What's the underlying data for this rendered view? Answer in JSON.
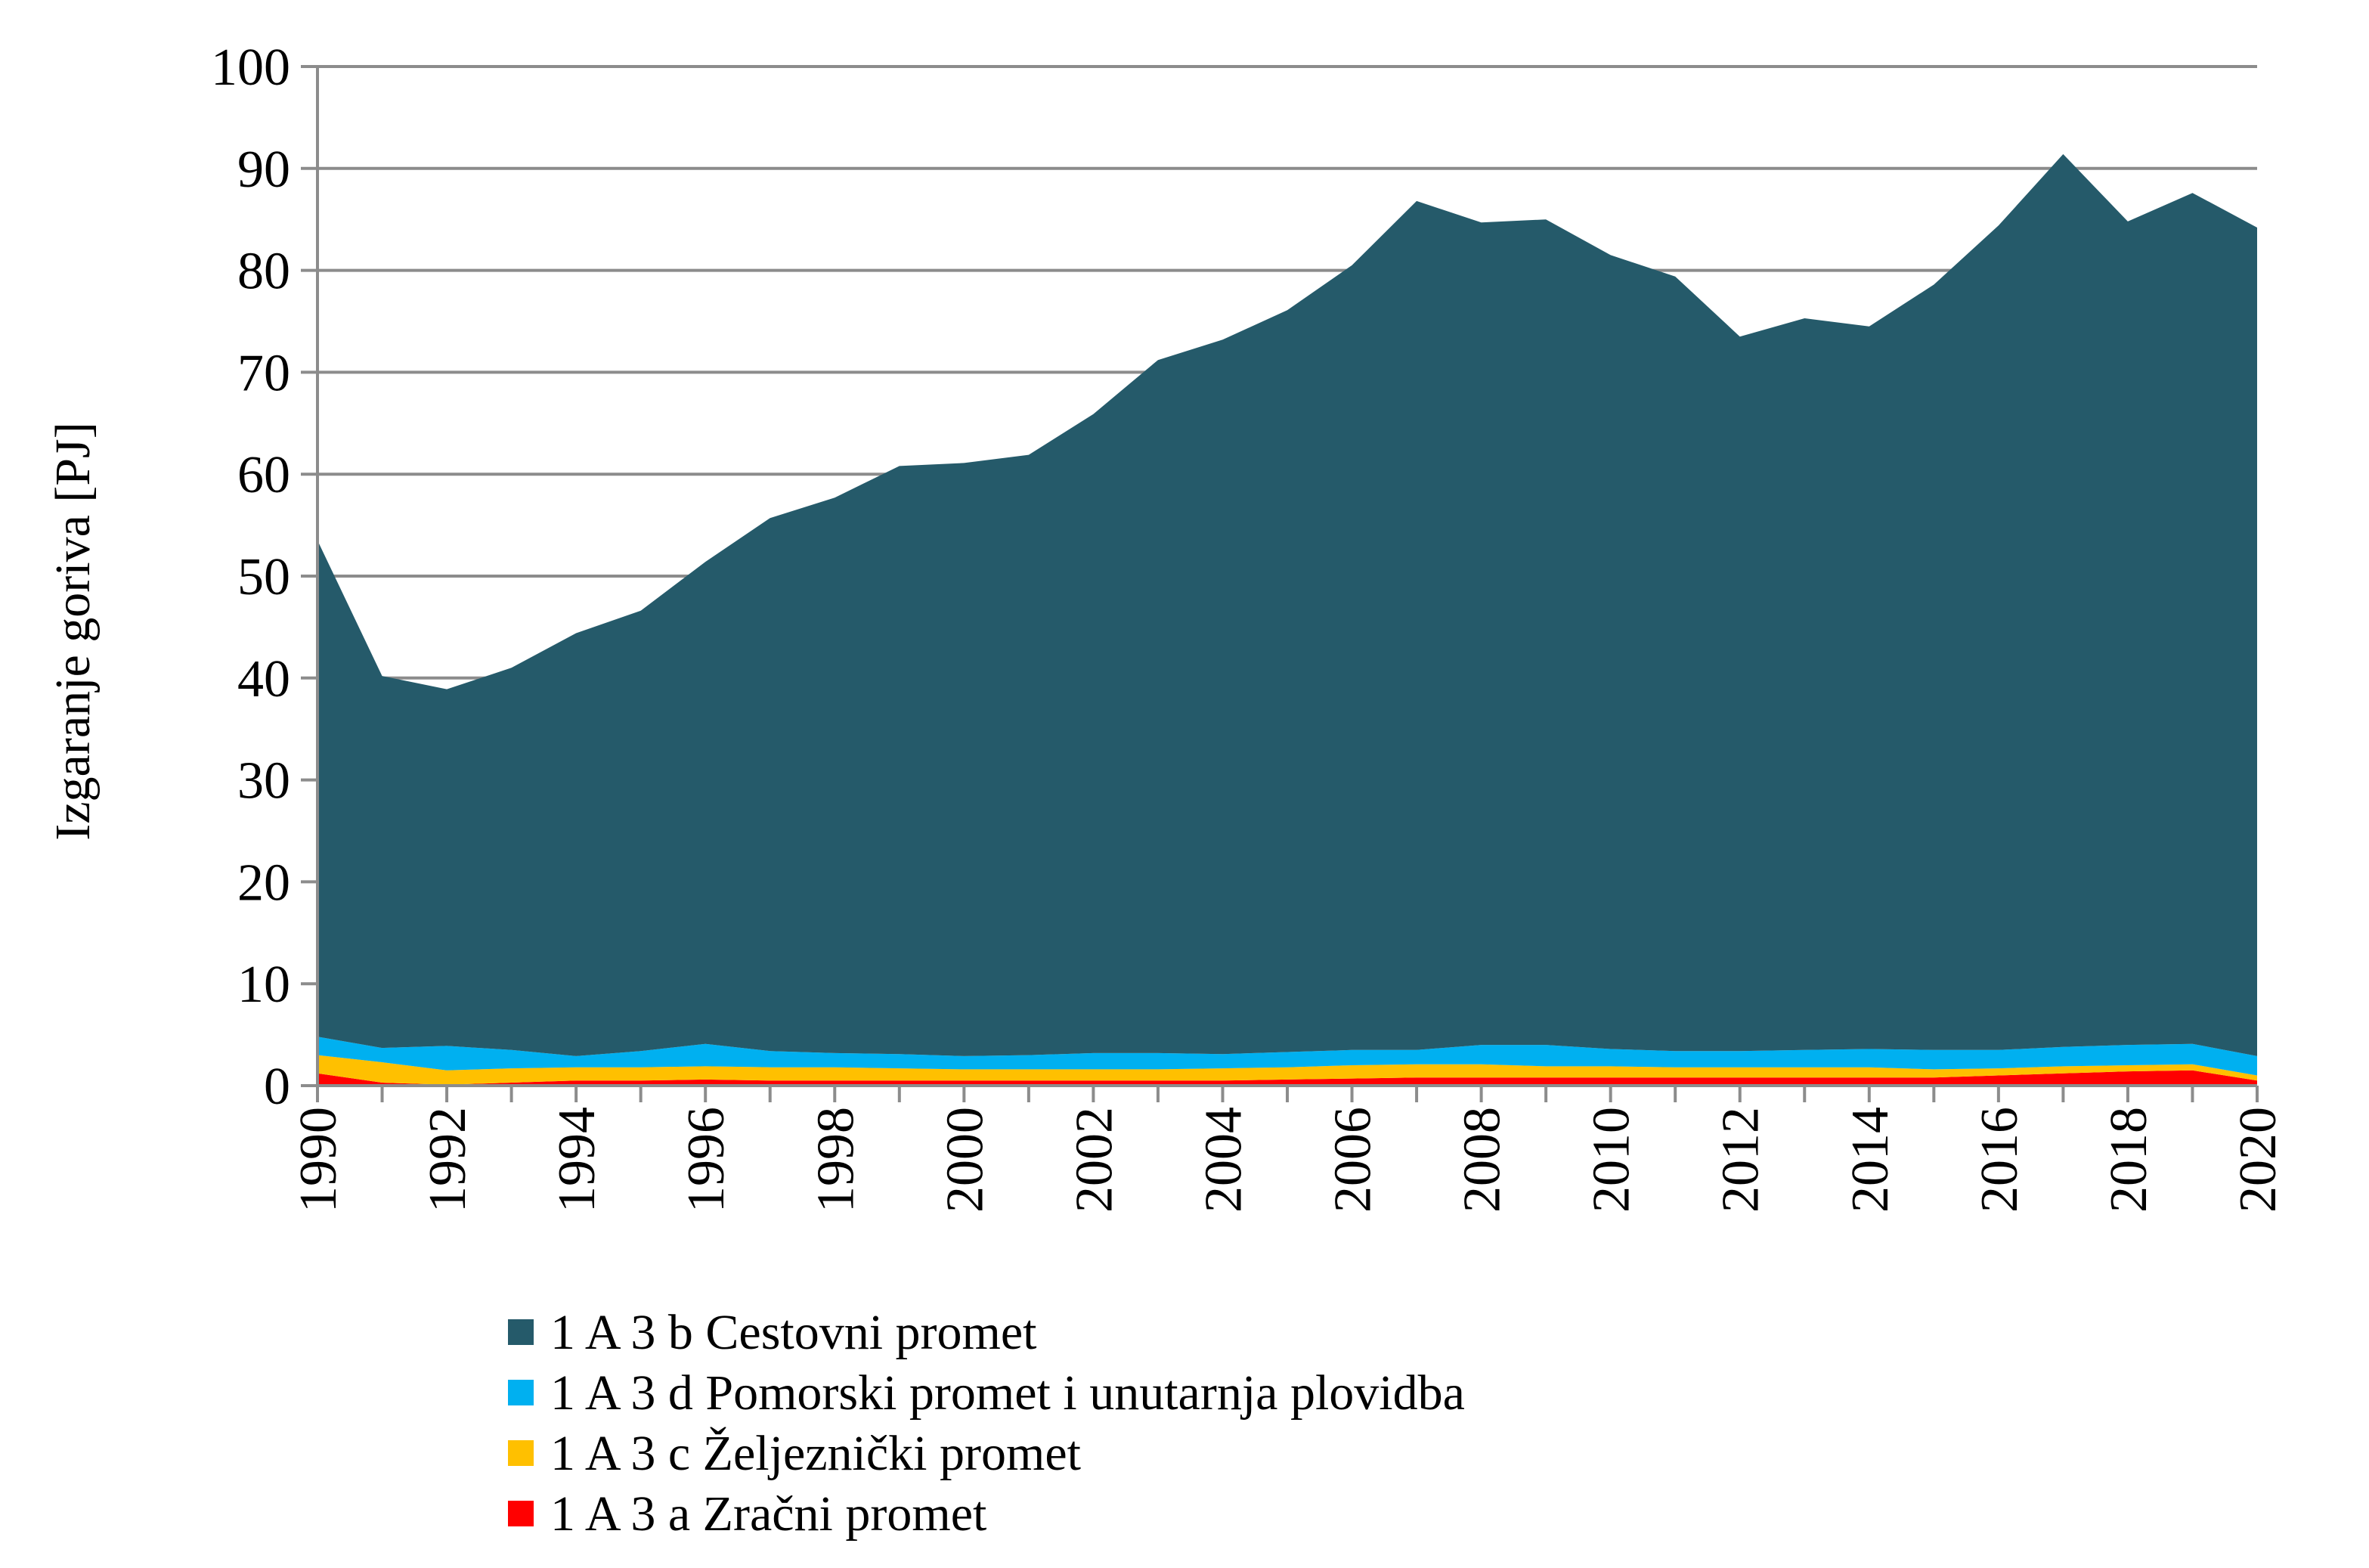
{
  "chart_data": {
    "type": "area",
    "stacked": true,
    "title": "",
    "xlabel": "",
    "ylabel": "Izgaranje goriva [PJ]",
    "ylim": [
      0,
      100
    ],
    "yticks": [
      0,
      10,
      20,
      30,
      40,
      50,
      60,
      70,
      80,
      90,
      100
    ],
    "xticks": [
      "1990",
      "1992",
      "1994",
      "1996",
      "1998",
      "2000",
      "2002",
      "2004",
      "2006",
      "2008",
      "2010",
      "2012",
      "2014",
      "2016",
      "2018",
      "2020"
    ],
    "grid": true,
    "legend_position": "bottom",
    "x": [
      1990,
      1991,
      1992,
      1993,
      1994,
      1995,
      1996,
      1997,
      1998,
      1999,
      2000,
      2001,
      2002,
      2003,
      2004,
      2005,
      2006,
      2007,
      2008,
      2009,
      2010,
      2011,
      2012,
      2013,
      2014,
      2015,
      2016,
      2017,
      2018,
      2019,
      2020
    ],
    "series": [
      {
        "name": "1 A 3 a Zračni promet",
        "color": "#FF0000",
        "values": [
          1.2,
          0.3,
          0.1,
          0.3,
          0.5,
          0.5,
          0.6,
          0.5,
          0.5,
          0.5,
          0.5,
          0.5,
          0.5,
          0.5,
          0.5,
          0.6,
          0.7,
          0.8,
          0.8,
          0.8,
          0.8,
          0.8,
          0.8,
          0.8,
          0.8,
          0.8,
          1.0,
          1.2,
          1.4,
          1.5,
          0.5
        ]
      },
      {
        "name": "1 A 3 c Željeznički promet",
        "color": "#FFC000",
        "values": [
          1.8,
          2.0,
          1.4,
          1.4,
          1.3,
          1.3,
          1.3,
          1.3,
          1.3,
          1.2,
          1.1,
          1.1,
          1.1,
          1.1,
          1.2,
          1.2,
          1.3,
          1.3,
          1.3,
          1.1,
          1.1,
          1.0,
          1.0,
          1.0,
          1.0,
          0.8,
          0.7,
          0.7,
          0.6,
          0.6,
          0.5
        ]
      },
      {
        "name": "1 A 3 d Pomorski promet i unutarnja plovidba",
        "color": "#00B0F0",
        "values": [
          1.8,
          1.4,
          2.4,
          1.8,
          1.1,
          1.6,
          2.2,
          1.6,
          1.4,
          1.4,
          1.3,
          1.4,
          1.6,
          1.6,
          1.4,
          1.5,
          1.5,
          1.4,
          1.9,
          2.1,
          1.7,
          1.6,
          1.6,
          1.7,
          1.8,
          1.9,
          1.8,
          1.9,
          2.0,
          2.0,
          1.9
        ]
      },
      {
        "name": "1 A 3 b Cestovni promet",
        "color": "#255A6A",
        "values": [
          48.7,
          36.5,
          35.0,
          37.5,
          41.5,
          43.2,
          47.3,
          52.3,
          54.5,
          57.7,
          58.2,
          58.9,
          62.7,
          68.0,
          70.1,
          72.8,
          77.0,
          83.3,
          80.7,
          81.0,
          77.9,
          76.0,
          70.1,
          71.8,
          70.9,
          75.1,
          80.9,
          87.6,
          80.8,
          83.5,
          81.3
        ]
      }
    ],
    "legend": [
      {
        "label": "1 A 3 b Cestovni promet",
        "color": "#255A6A"
      },
      {
        "label": "1 A 3 d Pomorski promet i unutarnja plovidba",
        "color": "#00B0F0"
      },
      {
        "label": "1 A 3 c Željeznički promet",
        "color": "#FFC000"
      },
      {
        "label": "1 A 3 a Zračni promet",
        "color": "#FF0000"
      }
    ]
  }
}
